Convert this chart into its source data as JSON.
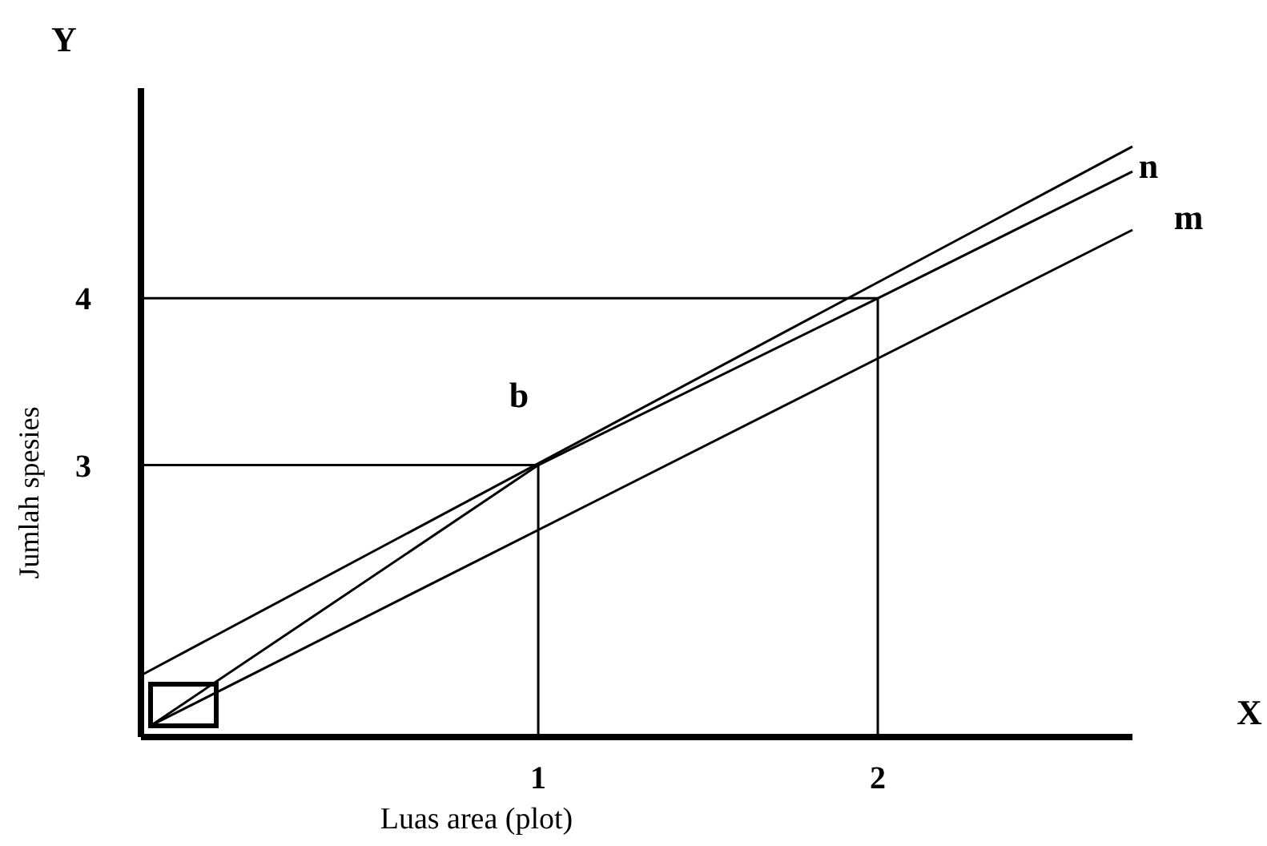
{
  "chart_data": {
    "type": "line",
    "xlabel": "Luas area (plot)",
    "ylabel": "Jumlah spesies",
    "xlim": [
      -0.17,
      2.75
    ],
    "ylim": [
      1.37,
      5.26
    ],
    "xticks": [
      1,
      2
    ],
    "yticks": [
      3,
      4
    ],
    "grid": false,
    "line_style": "solid",
    "series": [
      {
        "color": "#000000",
        "x": [
          -0.17,
          2.75
        ],
        "values": [
          1.74,
          4.91
        ]
      },
      {
        "color": "#000000",
        "x": [
          -0.14,
          1,
          2,
          2.75
        ],
        "values": [
          1.44,
          3,
          4,
          4.76
        ]
      },
      {
        "color": "#000000",
        "x": [
          -0.14,
          2.75
        ],
        "values": [
          1.44,
          4.41
        ]
      },
      {
        "color": "#000000",
        "x": [
          -0.17,
          1,
          1
        ],
        "values": [
          3,
          3,
          1.37
        ]
      },
      {
        "color": "#000000",
        "x": [
          -0.17,
          2,
          2
        ],
        "values": [
          4,
          4,
          1.37
        ]
      }
    ],
    "annotations": [
      "Y",
      "X",
      "b",
      "n",
      "m"
    ]
  }
}
